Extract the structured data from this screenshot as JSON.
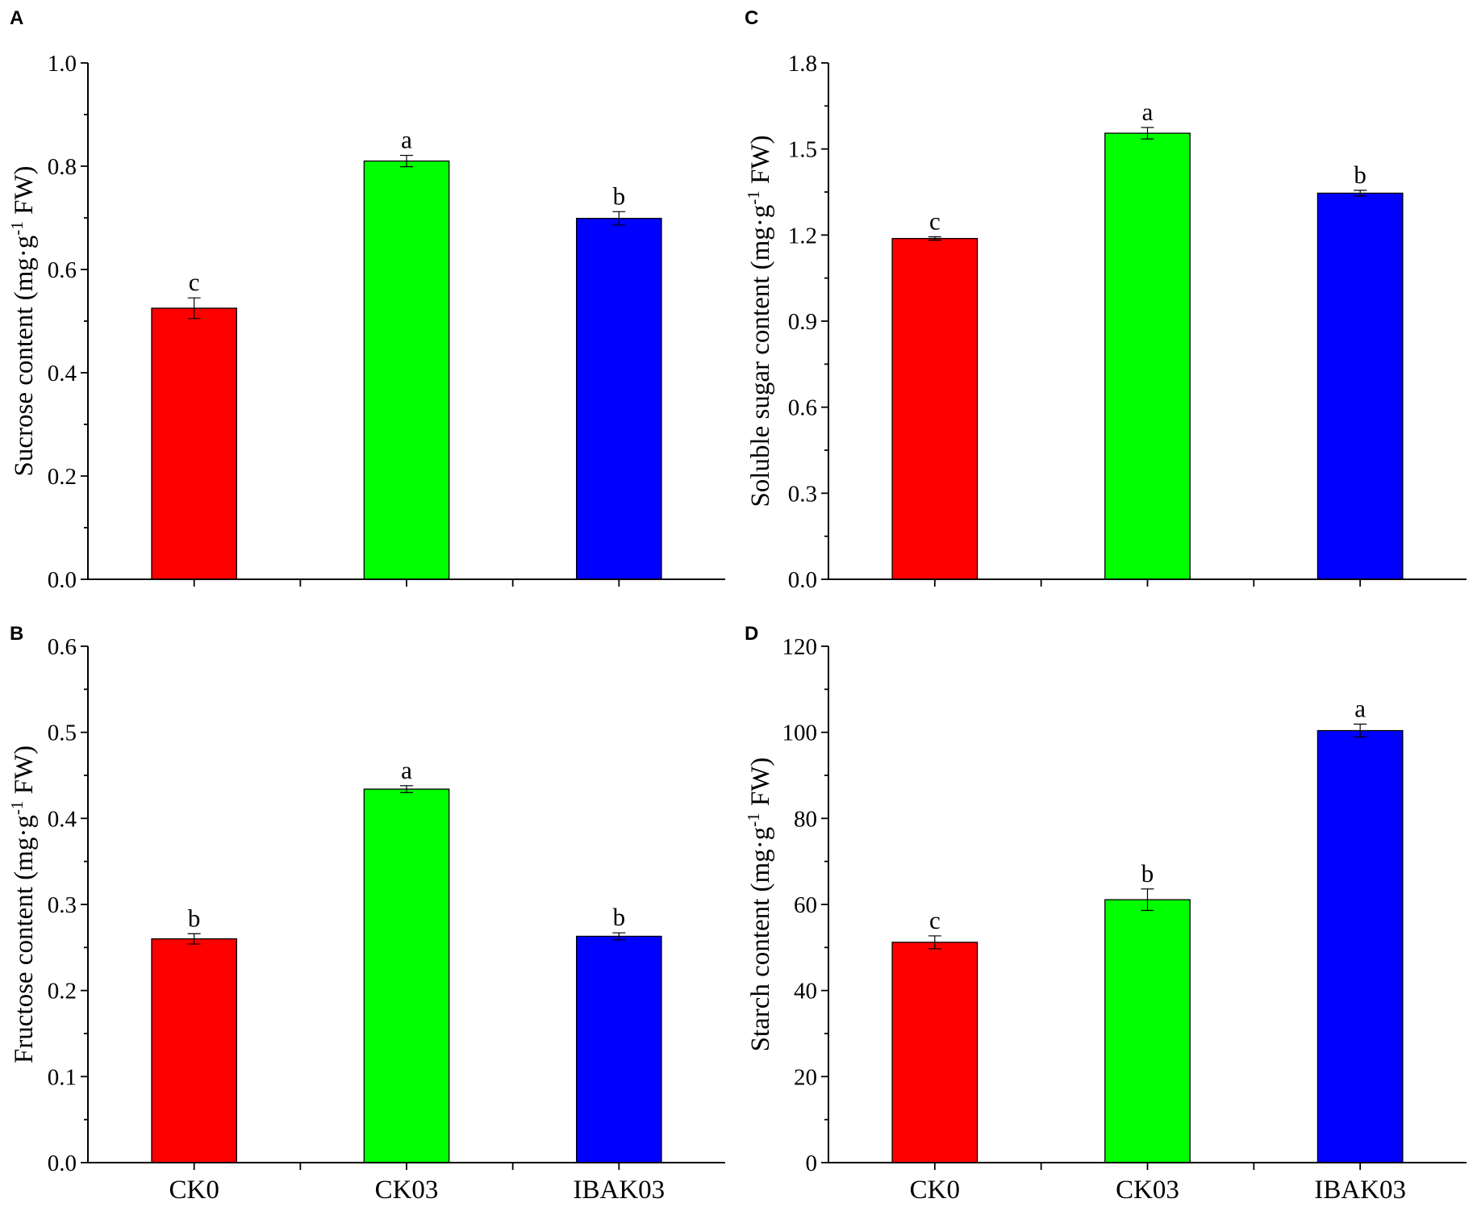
{
  "chart_data": [
    {
      "panel_label": "A",
      "type": "bar",
      "categories": [
        "CK0",
        "CK03",
        "IBAK03"
      ],
      "values": [
        0.525,
        0.81,
        0.699
      ],
      "errors": [
        0.02,
        0.011,
        0.013
      ],
      "letters": [
        "c",
        "a",
        "b"
      ],
      "colors": [
        "#ff0000",
        "#00ff00",
        "#0000ff"
      ],
      "ylabel": {
        "prefix": "Sucrose content (mg·g",
        "sup": "-1",
        "suffix": " FW)"
      },
      "ylim": [
        0,
        1.0
      ],
      "ytick_labels": [
        "0.0",
        "0.2",
        "0.4",
        "0.6",
        "0.8",
        "1.0"
      ],
      "show_xtick_labels": false
    },
    {
      "panel_label": "C",
      "type": "bar",
      "categories": [
        "CK0",
        "CK03",
        "IBAK03"
      ],
      "values": [
        1.188,
        1.555,
        1.346
      ],
      "errors": [
        0.006,
        0.02,
        0.01
      ],
      "letters": [
        "c",
        "a",
        "b"
      ],
      "colors": [
        "#ff0000",
        "#00ff00",
        "#0000ff"
      ],
      "ylabel": {
        "prefix": "Soluble sugar content (mg·g",
        "sup": "-1",
        "suffix": " FW)"
      },
      "ylim": [
        0,
        1.8
      ],
      "ytick_labels": [
        "0.0",
        "0.3",
        "0.6",
        "0.9",
        "1.2",
        "1.5",
        "1.8"
      ],
      "show_xtick_labels": false
    },
    {
      "panel_label": "B",
      "type": "bar",
      "categories": [
        "CK0",
        "CK03",
        "IBAK03"
      ],
      "values": [
        0.26,
        0.434,
        0.263
      ],
      "errors": [
        0.006,
        0.004,
        0.004
      ],
      "letters": [
        "b",
        "a",
        "b"
      ],
      "colors": [
        "#ff0000",
        "#00ff00",
        "#0000ff"
      ],
      "ylabel": {
        "prefix": "Fructose content (mg·g",
        "sup": "-1",
        "suffix": " FW)"
      },
      "ylim": [
        0,
        0.6
      ],
      "ytick_labels": [
        "0.0",
        "0.1",
        "0.2",
        "0.3",
        "0.4",
        "0.5",
        "0.6"
      ],
      "show_xtick_labels": true
    },
    {
      "panel_label": "D",
      "type": "bar",
      "categories": [
        "CK0",
        "CK03",
        "IBAK03"
      ],
      "values": [
        51.2,
        61.1,
        100.4
      ],
      "errors": [
        1.5,
        2.5,
        1.5
      ],
      "letters": [
        "c",
        "b",
        "a"
      ],
      "colors": [
        "#ff0000",
        "#00ff00",
        "#0000ff"
      ],
      "ylabel": {
        "prefix": "Starch content (mg·g",
        "sup": "-1",
        "suffix": " FW)"
      },
      "ylim": [
        0,
        120
      ],
      "ytick_labels": [
        "0",
        "20",
        "40",
        "60",
        "80",
        "100",
        "120"
      ],
      "show_xtick_labels": true
    }
  ]
}
